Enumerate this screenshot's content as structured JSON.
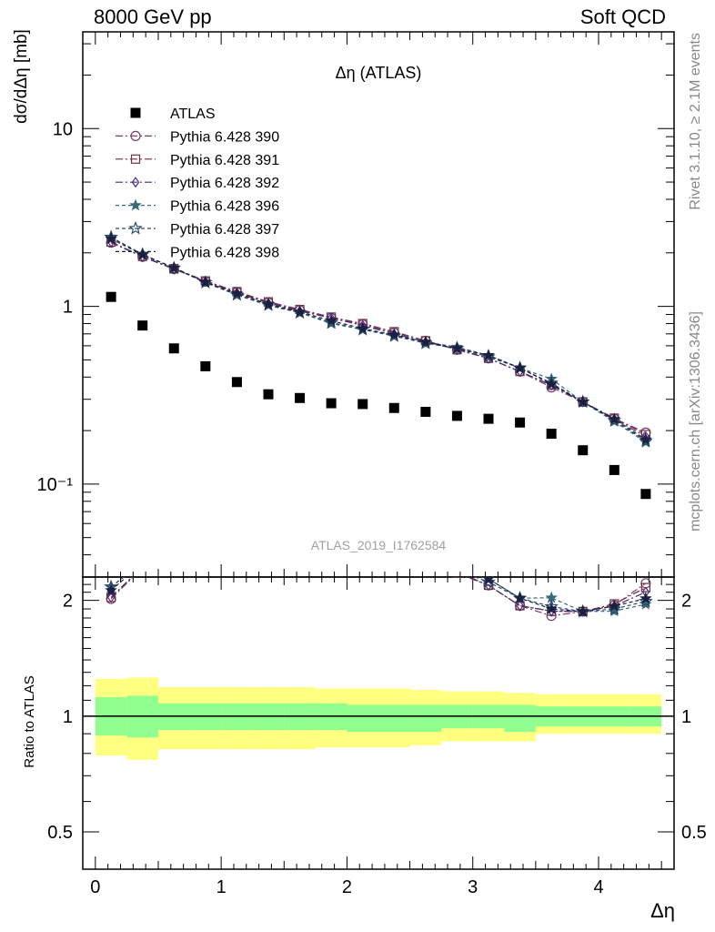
{
  "header": {
    "left": "8000 GeV pp",
    "right": "Soft QCD"
  },
  "side_labels": {
    "top": "Rivet 3.1.10, ≥ 2.1M events",
    "bottom": "mcplots.cern.ch [arXiv:1306.3436]"
  },
  "chart_data": {
    "type": "scatter",
    "title": "Δη (ATLAS)",
    "watermark": "ATLAS_2019_I1762584",
    "xlabel": "Δη",
    "ylabel": "dσ/dΔη [mb]",
    "ratio_ylabel": "Ratio to ATLAS",
    "xlim": [
      -0.1,
      4.6
    ],
    "ylim": [
      0.03,
      35
    ],
    "ylog": true,
    "ratio_ylim": [
      0.4,
      2.3
    ],
    "x_ticks": [
      "0",
      "1",
      "2",
      "3",
      "4"
    ],
    "y_ticks": [
      "10⁻¹",
      "1",
      "10"
    ],
    "ratio_ticks": [
      "0.5",
      "1",
      "2"
    ],
    "bin_edges": [
      0,
      0.25,
      0.5,
      0.75,
      1.0,
      1.25,
      1.5,
      1.75,
      2.0,
      2.25,
      2.5,
      2.75,
      3.0,
      3.25,
      3.5,
      3.75,
      4.0,
      4.25,
      4.5
    ],
    "x": [
      0.125,
      0.375,
      0.625,
      0.875,
      1.125,
      1.375,
      1.625,
      1.875,
      2.125,
      2.375,
      2.625,
      2.875,
      3.125,
      3.375,
      3.625,
      3.875,
      4.125,
      4.375
    ],
    "data": {
      "name": "ATLAS",
      "values": [
        1.13,
        0.78,
        0.58,
        0.46,
        0.375,
        0.32,
        0.305,
        0.285,
        0.282,
        0.268,
        0.255,
        0.242,
        0.233,
        0.222,
        0.192,
        0.155,
        0.12,
        0.088
      ],
      "stat_band": [
        [
          0.89,
          1.12
        ],
        [
          0.88,
          1.13
        ],
        [
          0.92,
          1.08
        ],
        [
          0.92,
          1.08
        ],
        [
          0.92,
          1.08
        ],
        [
          0.92,
          1.08
        ],
        [
          0.92,
          1.08
        ],
        [
          0.92,
          1.08
        ],
        [
          0.91,
          1.07
        ],
        [
          0.91,
          1.07
        ],
        [
          0.91,
          1.07
        ],
        [
          0.93,
          1.07
        ],
        [
          0.93,
          1.07
        ],
        [
          0.91,
          1.07
        ],
        [
          0.94,
          1.06
        ],
        [
          0.94,
          1.06
        ],
        [
          0.94,
          1.06
        ],
        [
          0.94,
          1.06
        ]
      ],
      "total_band": [
        [
          0.79,
          1.25
        ],
        [
          0.77,
          1.26
        ],
        [
          0.82,
          1.19
        ],
        [
          0.82,
          1.19
        ],
        [
          0.82,
          1.19
        ],
        [
          0.82,
          1.19
        ],
        [
          0.82,
          1.19
        ],
        [
          0.83,
          1.18
        ],
        [
          0.83,
          1.18
        ],
        [
          0.83,
          1.18
        ],
        [
          0.84,
          1.17
        ],
        [
          0.86,
          1.16
        ],
        [
          0.86,
          1.16
        ],
        [
          0.86,
          1.15
        ],
        [
          0.9,
          1.14
        ],
        [
          0.9,
          1.14
        ],
        [
          0.9,
          1.14
        ],
        [
          0.9,
          1.14
        ]
      ]
    },
    "series": [
      {
        "name": "Pythia 6.428 390",
        "marker": "circle",
        "color": "#7a3d6e",
        "dash": "8,3,2,3",
        "values": [
          2.28,
          1.9,
          1.62,
          1.38,
          1.2,
          1.05,
          0.95,
          0.86,
          0.79,
          0.71,
          0.64,
          0.57,
          0.51,
          0.43,
          0.35,
          0.29,
          0.233,
          0.195
        ]
      },
      {
        "name": "Pythia 6.428 391",
        "marker": "square",
        "color": "#6e3140",
        "dash": "8,3,2,3",
        "values": [
          2.3,
          1.91,
          1.63,
          1.39,
          1.21,
          1.06,
          0.96,
          0.87,
          0.8,
          0.72,
          0.64,
          0.57,
          0.51,
          0.43,
          0.36,
          0.29,
          0.235,
          0.19
        ]
      },
      {
        "name": "Pythia 6.428 392",
        "marker": "diamond",
        "color": "#4a2d7a",
        "dash": "8,3,2,3",
        "values": [
          2.3,
          1.9,
          1.62,
          1.38,
          1.19,
          1.04,
          0.94,
          0.86,
          0.78,
          0.7,
          0.63,
          0.575,
          0.51,
          0.43,
          0.36,
          0.29,
          0.232,
          0.185
        ]
      },
      {
        "name": "Pythia 6.428 396",
        "marker": "star",
        "color": "#3a6a7a",
        "dash": "4,3",
        "values": [
          2.45,
          1.96,
          1.64,
          1.36,
          1.16,
          1.01,
          0.92,
          0.8,
          0.74,
          0.69,
          0.63,
          0.59,
          0.53,
          0.45,
          0.39,
          0.29,
          0.225,
          0.172
        ]
      },
      {
        "name": "Pythia 6.428 397",
        "marker": "star-open",
        "color": "#2a4a6a",
        "dash": "4,3",
        "values": [
          2.45,
          1.96,
          1.64,
          1.36,
          1.16,
          1.02,
          0.92,
          0.81,
          0.74,
          0.68,
          0.62,
          0.58,
          0.52,
          0.45,
          0.37,
          0.29,
          0.228,
          0.175
        ]
      },
      {
        "name": "Pythia 6.428 398",
        "marker": "star",
        "color": "#1a2040",
        "dash": "4,3",
        "values": [
          2.4,
          1.95,
          1.65,
          1.37,
          1.18,
          1.03,
          0.93,
          0.83,
          0.75,
          0.69,
          0.63,
          0.58,
          0.53,
          0.45,
          0.365,
          0.29,
          0.232,
          0.178
        ]
      }
    ]
  }
}
